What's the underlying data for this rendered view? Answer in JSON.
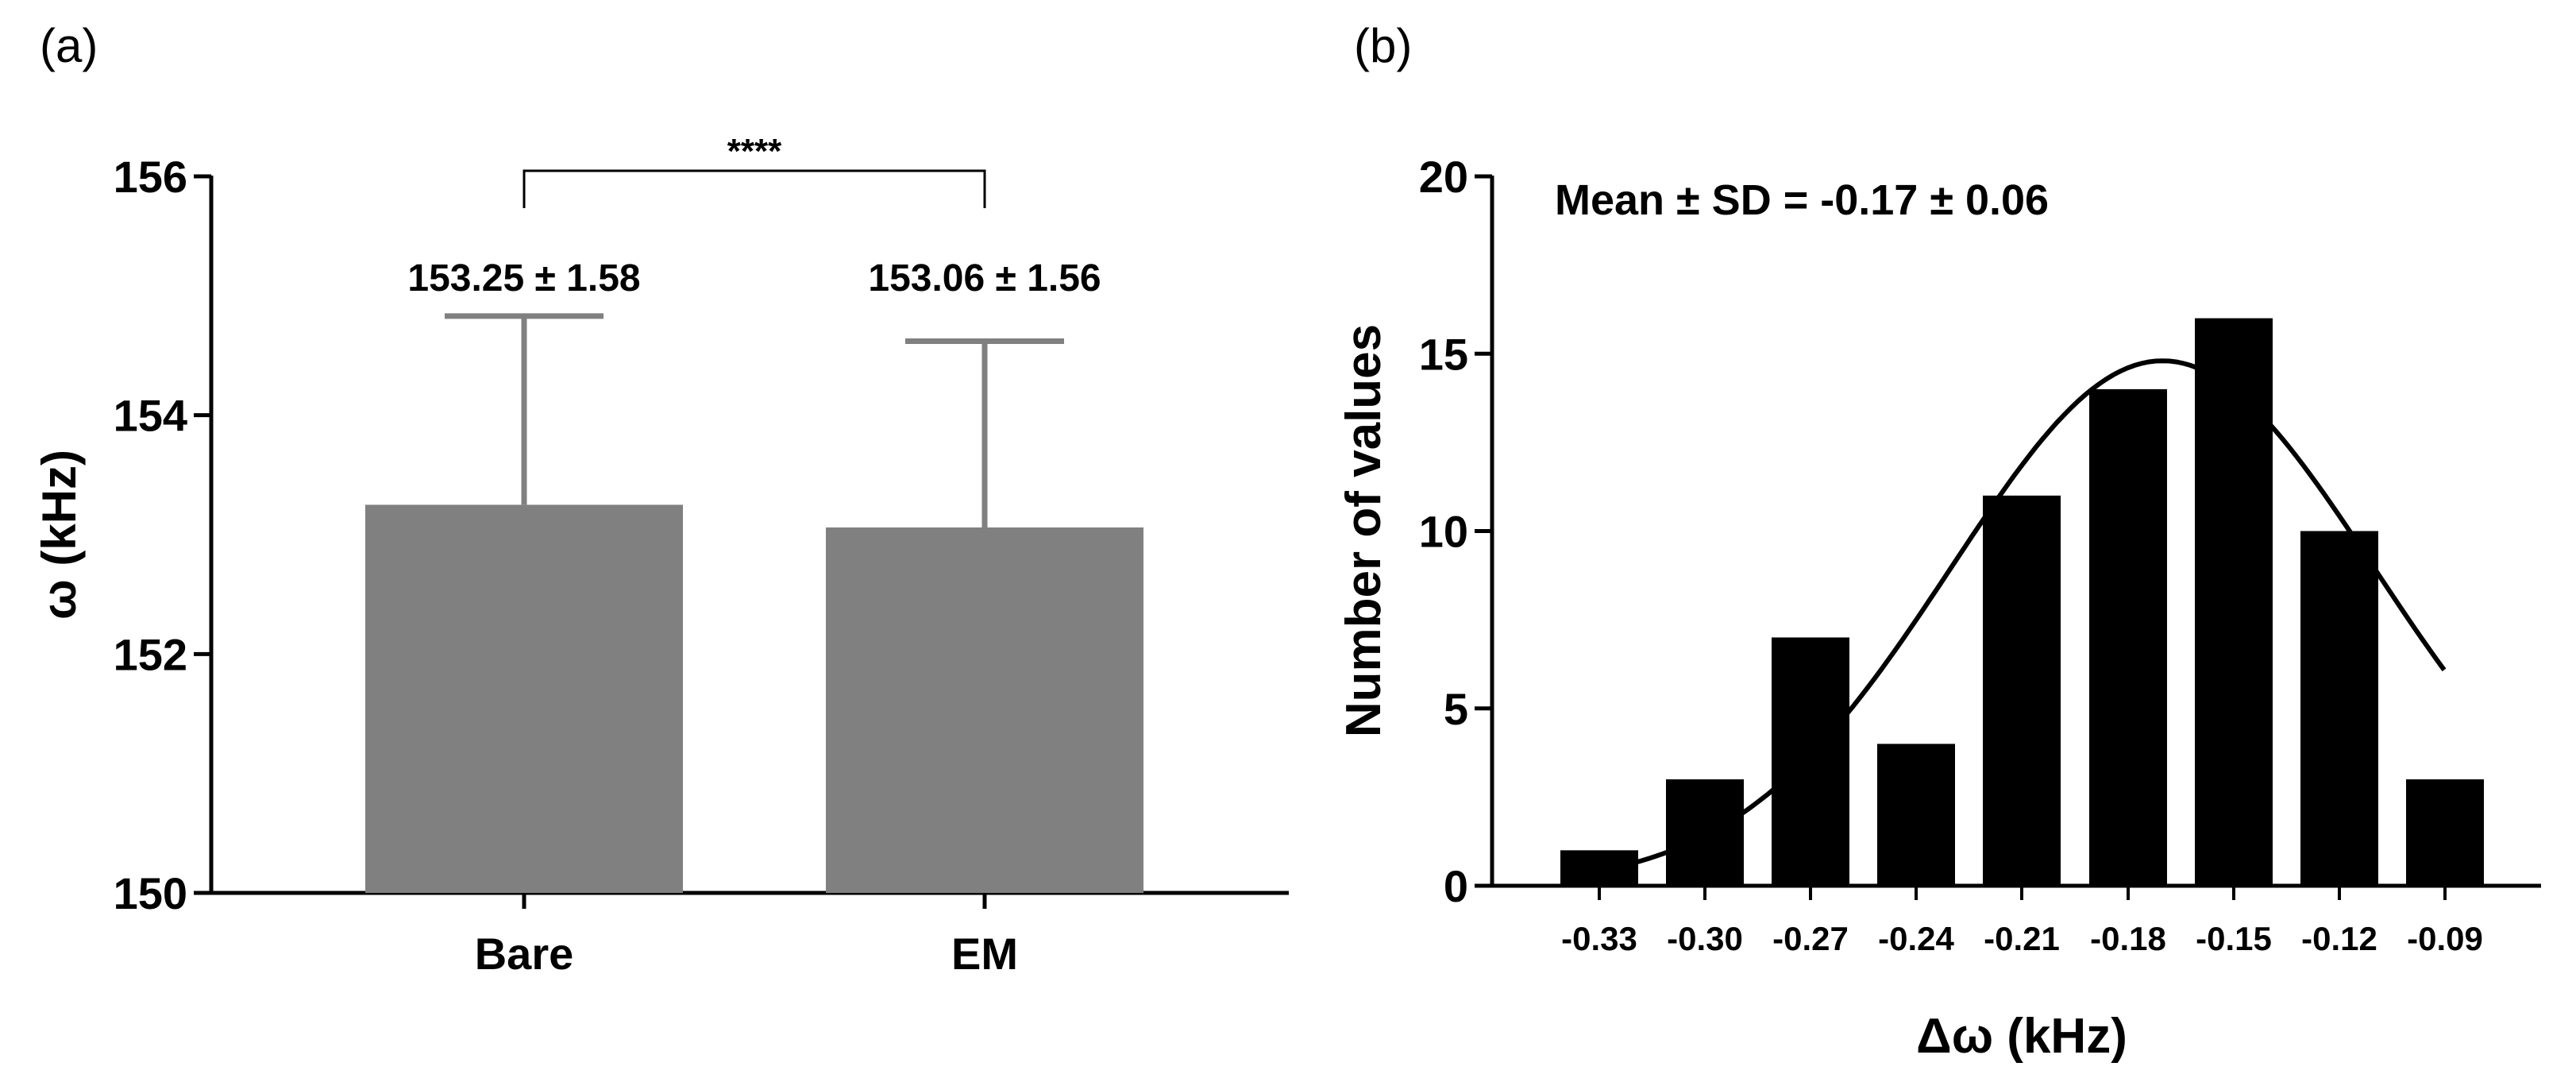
{
  "chart_data": [
    {
      "panel": "(a)",
      "type": "bar",
      "categories": [
        "Bare",
        "EM"
      ],
      "values": [
        153.25,
        153.06
      ],
      "errors": [
        1.58,
        1.56
      ],
      "value_labels": [
        "153.25 ± 1.58",
        "153.06 ± 1.56"
      ],
      "ylabel": "ω (kHz)",
      "ylim": [
        150,
        156
      ],
      "yticks": [
        150,
        152,
        154,
        156
      ],
      "ytick_labels": [
        "150",
        "152",
        "154",
        "156"
      ],
      "significance": "****",
      "colors": {
        "bar": "#808080",
        "axis": "#000000"
      }
    },
    {
      "panel": "(b)",
      "type": "bar",
      "subtype": "histogram",
      "categories": [
        "-0.33",
        "-0.30",
        "-0.27",
        "-0.24",
        "-0.21",
        "-0.18",
        "-0.15",
        "-0.12",
        "-0.09"
      ],
      "x": [
        -0.33,
        -0.3,
        -0.27,
        -0.24,
        -0.21,
        -0.18,
        -0.15,
        -0.12,
        -0.09
      ],
      "values": [
        1,
        3,
        7,
        4,
        11,
        14,
        16,
        10,
        3
      ],
      "xlabel": "Δω (kHz)",
      "ylabel": "Number of values",
      "ylim": [
        0,
        20
      ],
      "yticks": [
        0,
        5,
        10,
        15,
        20
      ],
      "ytick_labels": [
        "0",
        "5",
        "10",
        "15",
        "20"
      ],
      "annotation": "Mean ± SD = -0.17 ± 0.06",
      "fit": {
        "type": "gaussian",
        "mean": -0.17,
        "sd": 0.06,
        "peak": 14.8,
        "x_range": [
          -0.33,
          -0.09
        ]
      },
      "colors": {
        "bar": "#000000",
        "axis": "#000000",
        "curve": "#000000"
      }
    }
  ]
}
